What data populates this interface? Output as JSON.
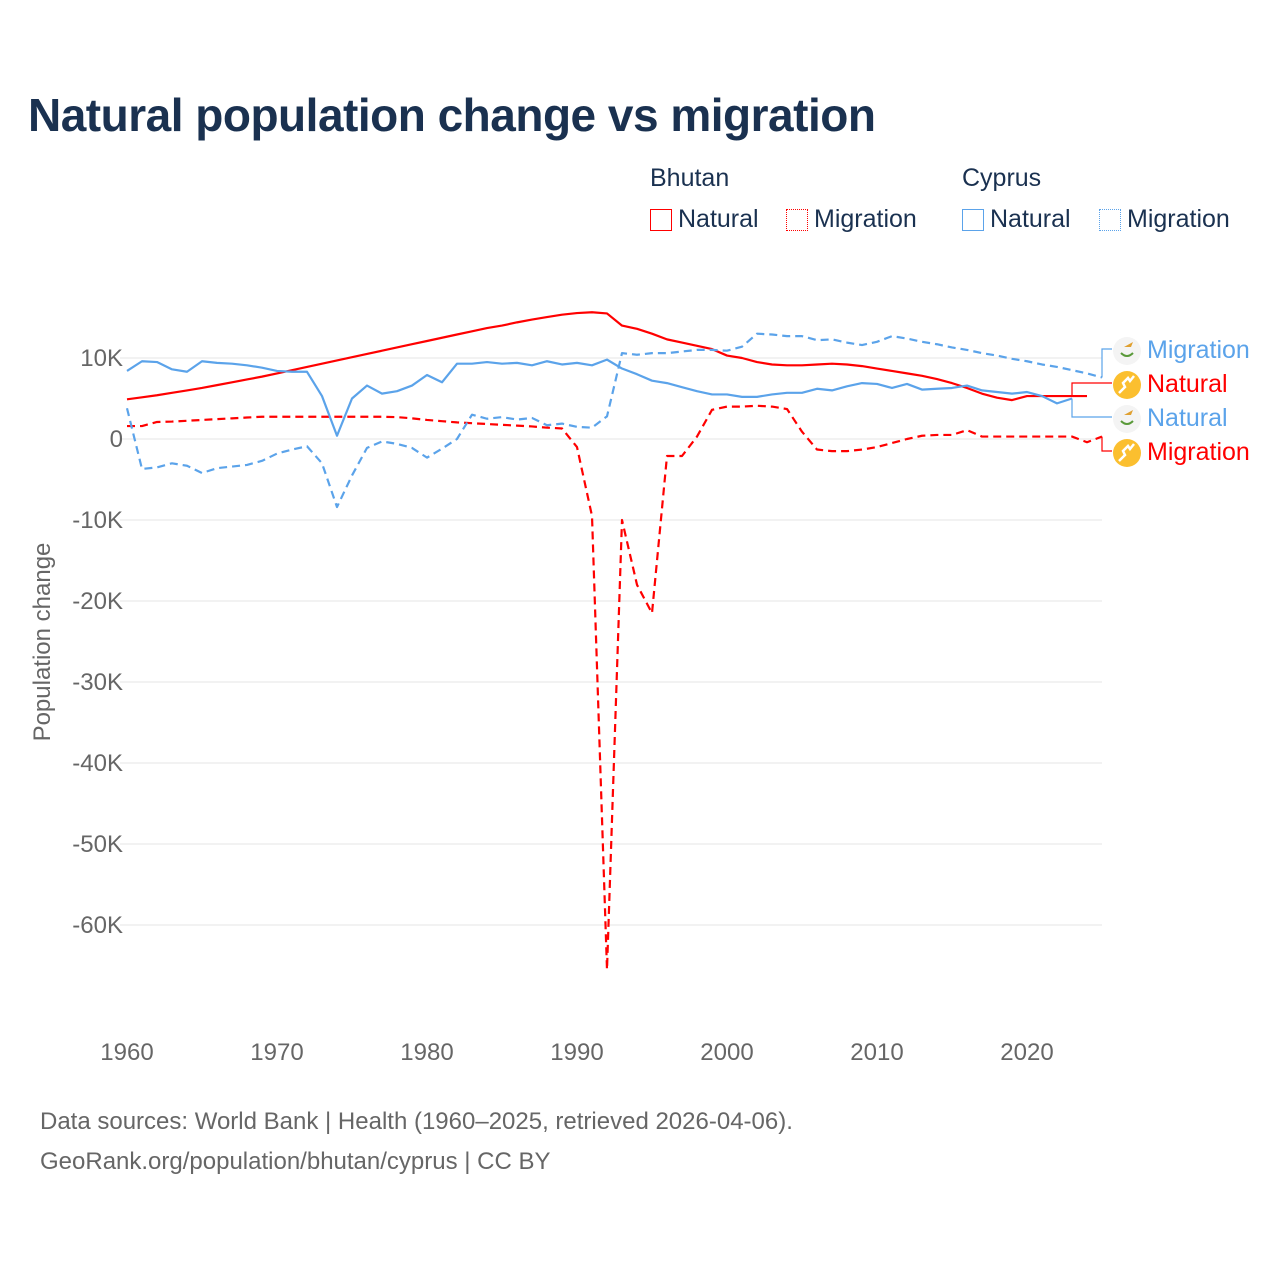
{
  "title": "Natural population change vs migration",
  "legend": {
    "groups": [
      {
        "name": "Bhutan",
        "items": [
          {
            "label": "Natural",
            "style": "solid"
          },
          {
            "label": "Migration",
            "style": "dotted"
          }
        ],
        "color": "#ff0000"
      },
      {
        "name": "Cyprus",
        "items": [
          {
            "label": "Natural",
            "style": "solid"
          },
          {
            "label": "Migration",
            "style": "dotted"
          }
        ],
        "color": "#5ba3ea"
      }
    ]
  },
  "footer": {
    "line1": "Data sources: World Bank | Health (1960–2025, retrieved 2026-04-06).",
    "line2": "GeoRank.org/population/bhutan/cyprus | CC BY"
  },
  "chart_data": {
    "type": "line",
    "title": "Natural population change vs migration",
    "xlabel": "",
    "ylabel": "Population change",
    "xlim": [
      1960,
      2025
    ],
    "ylim": [
      -70000,
      18000
    ],
    "x_ticks": [
      1960,
      1970,
      1980,
      1990,
      2000,
      2010,
      2020
    ],
    "x_tick_labels": [
      "1960",
      "1970",
      "1980",
      "1990",
      "2000",
      "2010",
      "2020"
    ],
    "y_ticks": [
      10000,
      0,
      -10000,
      -20000,
      -30000,
      -40000,
      -50000,
      -60000
    ],
    "y_tick_labels": [
      "10K",
      "0",
      "-10K",
      "-20K",
      "-30K",
      "-40K",
      "-50K",
      "-60K"
    ],
    "grid": true,
    "legend_position": "top-right",
    "start_year": 1960,
    "series": [
      {
        "name": "Bhutan Natural",
        "end_label": "Natural",
        "color": "#ff0000",
        "dash": false,
        "values": [
          4900,
          5150,
          5400,
          5700,
          6000,
          6300,
          6650,
          7000,
          7350,
          7700,
          8100,
          8500,
          8900,
          9300,
          9700,
          10100,
          10500,
          10900,
          11300,
          11700,
          12100,
          12500,
          12900,
          13300,
          13700,
          14000,
          14400,
          14750,
          15050,
          15350,
          15550,
          15650,
          15500,
          14000,
          13600,
          13000,
          12300,
          11900,
          11500,
          11100,
          10300,
          10000,
          9500,
          9200,
          9100,
          9100,
          9200,
          9300,
          9200,
          9000,
          8700,
          8400,
          8100,
          7800,
          7400,
          6900,
          6300,
          5600,
          5100,
          4800,
          5300,
          5300,
          5300,
          5300,
          5300
        ],
        "years_note": "1960-2024"
      },
      {
        "name": "Bhutan Migration",
        "end_label": "Migration",
        "color": "#ff0000",
        "dash": true,
        "values": [
          1600,
          1600,
          2100,
          2150,
          2250,
          2350,
          2450,
          2550,
          2650,
          2750,
          2750,
          2750,
          2750,
          2750,
          2750,
          2750,
          2750,
          2750,
          2700,
          2550,
          2350,
          2200,
          2050,
          1950,
          1850,
          1750,
          1650,
          1550,
          1400,
          1300,
          -1000,
          -9500,
          -65500,
          -10000,
          -18000,
          -21500,
          -2100,
          -2100,
          300,
          3600,
          4000,
          4000,
          4100,
          4000,
          3700,
          900,
          -1300,
          -1500,
          -1500,
          -1300,
          -1000,
          -500,
          0,
          400,
          500,
          500,
          1100,
          300,
          300,
          300,
          300,
          300,
          300,
          300,
          -400,
          300
        ]
      },
      {
        "name": "Cyprus Natural",
        "end_label": "Natural",
        "color": "#5ba3ea",
        "dash": false,
        "values": [
          8400,
          9600,
          9500,
          8600,
          8300,
          9600,
          9400,
          9300,
          9100,
          8800,
          8400,
          8300,
          8300,
          5300,
          400,
          5000,
          6600,
          5600,
          5900,
          6600,
          7900,
          7000,
          9300,
          9300,
          9500,
          9300,
          9400,
          9100,
          9600,
          9200,
          9400,
          9100,
          9800,
          8700,
          8000,
          7200,
          6900,
          6400,
          5900,
          5500,
          5500,
          5200,
          5200,
          5500,
          5700,
          5700,
          6200,
          6000,
          6500,
          6900,
          6800,
          6300,
          6800,
          6100,
          6200,
          6300,
          6600,
          6000,
          5800,
          5600,
          5800,
          5300,
          4400,
          5000
        ]
      },
      {
        "name": "Cyprus Migration",
        "end_label": "Migration",
        "color": "#5ba3ea",
        "dash": true,
        "values": [
          3800,
          -3700,
          -3500,
          -3000,
          -3300,
          -4200,
          -3600,
          -3400,
          -3200,
          -2700,
          -1800,
          -1300,
          -900,
          -3000,
          -8400,
          -4500,
          -1100,
          -300,
          -600,
          -1100,
          -2300,
          -1200,
          0,
          3000,
          2500,
          2700,
          2400,
          2600,
          1700,
          1900,
          1500,
          1400,
          2800,
          10600,
          10400,
          10600,
          10600,
          10800,
          11000,
          11000,
          10900,
          11400,
          13000,
          12900,
          12700,
          12700,
          12200,
          12300,
          11900,
          11600,
          12000,
          12700,
          12400,
          12000,
          11700,
          11300,
          11000,
          10600,
          10300,
          9900,
          9600,
          9200,
          8900,
          8500,
          8100,
          7600
        ]
      }
    ]
  }
}
